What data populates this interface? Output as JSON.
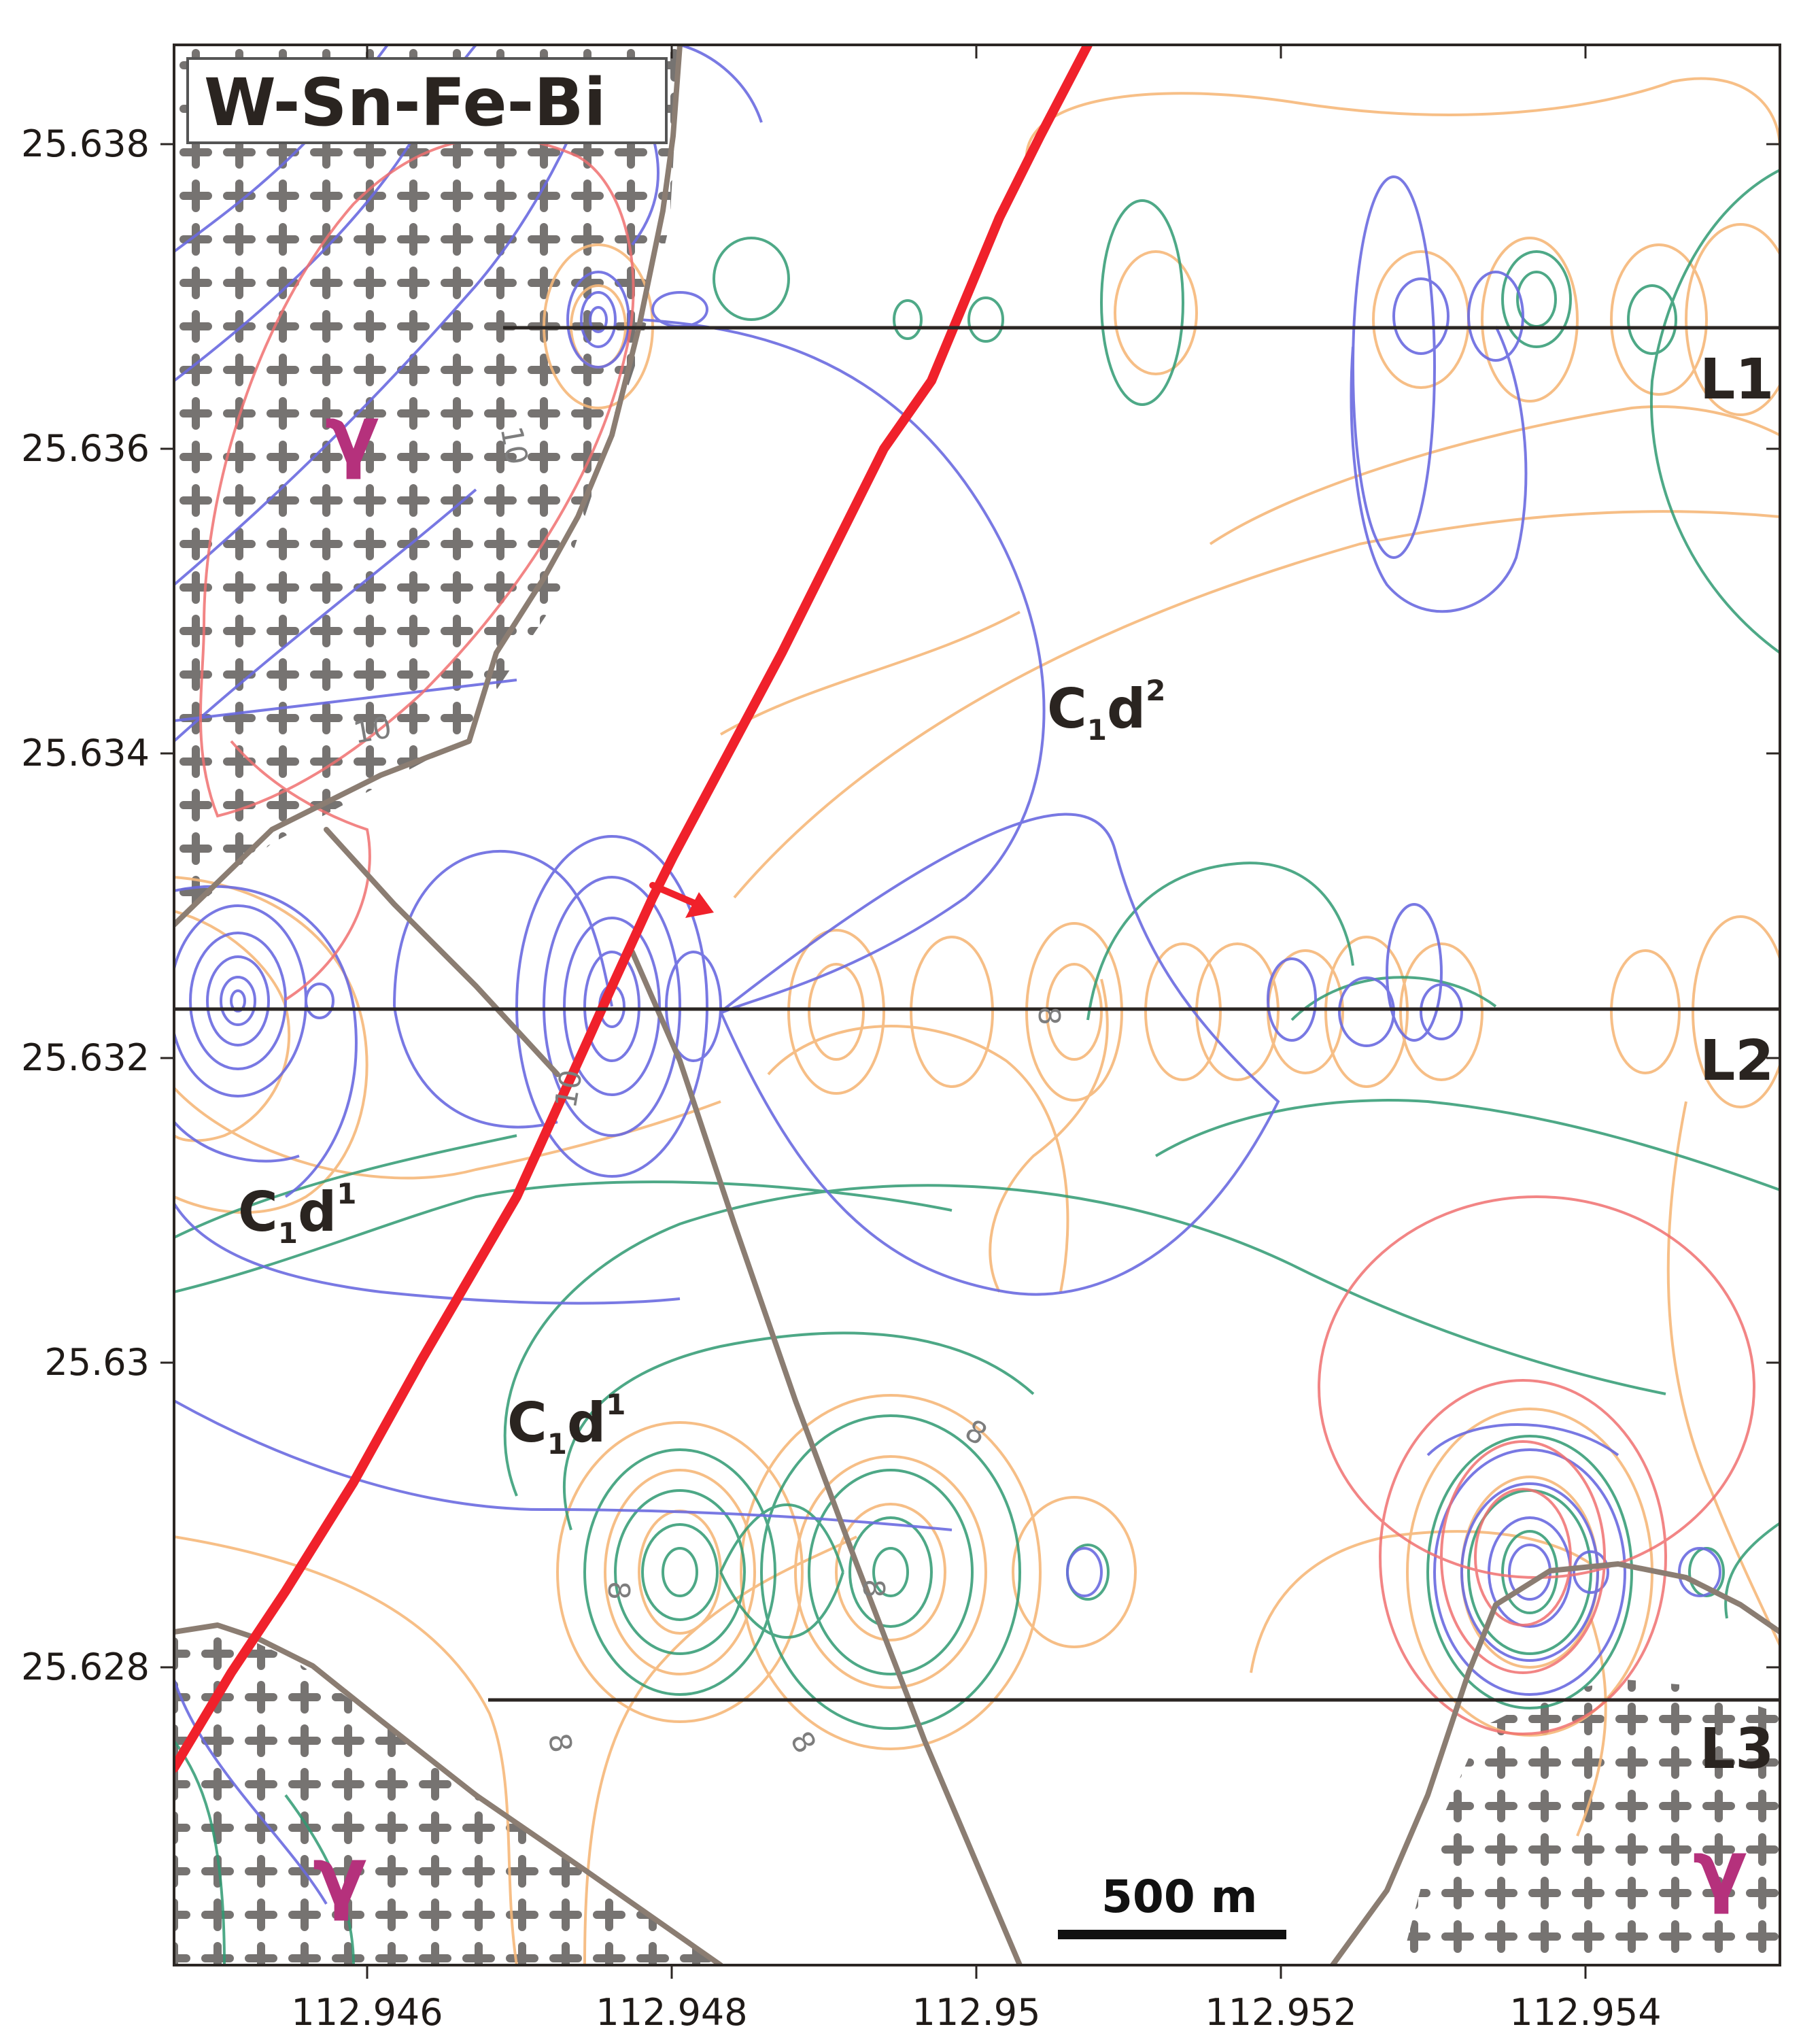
{
  "map_title": "W-Sn-Fe-Bi",
  "axes": {
    "y_ticks": [
      "25.638",
      "25.636",
      "25.634",
      "25.632",
      "25.63",
      "25.628"
    ],
    "x_ticks": [
      "112.946",
      "112.948",
      "112.95",
      "112.952",
      "112.954"
    ]
  },
  "profile_lines": [
    "L1",
    "L2",
    "L3"
  ],
  "geology_labels": {
    "granite": "γ",
    "unit_upper_base": "C",
    "unit_upper_sub": "1",
    "unit_upper_d": "d",
    "unit_upper_sup": "2",
    "unit_lower_base": "C",
    "unit_lower_sub": "1",
    "unit_lower_d": "d",
    "unit_lower_sup": "1"
  },
  "contour_labels": [
    "10",
    "10",
    "10",
    "8",
    "8",
    "8",
    "8",
    "8",
    "8"
  ],
  "scale_bar": {
    "label": "500 m"
  },
  "colors": {
    "fault": "#f0212b",
    "geologic_boundary": "#8b7d72",
    "profile_line": "#2b2623",
    "contour_W": "#6a6ae0",
    "contour_Sn": "#2f9a72",
    "contour_Fe": "#f6b87a",
    "contour_Bi": "#f07070",
    "granite_symbol": "#5e5a58",
    "gamma_label": "#b5317c"
  }
}
